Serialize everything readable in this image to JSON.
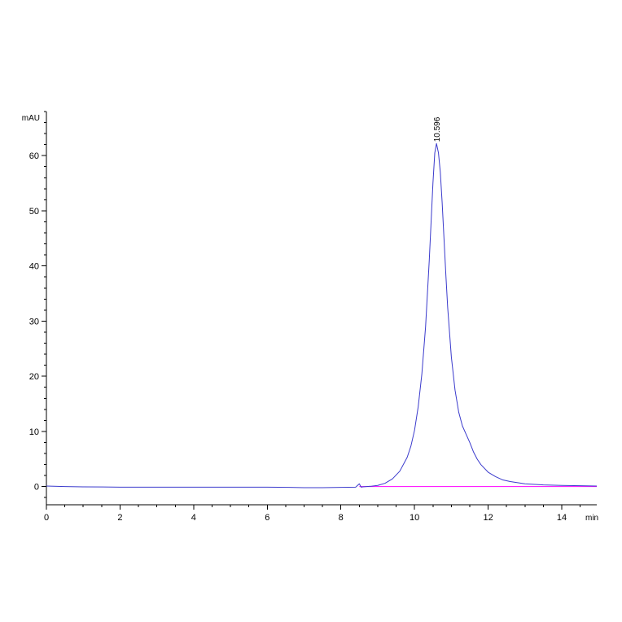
{
  "chart_data": {
    "type": "line",
    "title": "",
    "xlabel": "",
    "ylabel": "",
    "x_unit": "min",
    "y_unit": "mAU",
    "xlim": [
      0,
      14.95
    ],
    "ylim": [
      -3.3,
      68
    ],
    "x_ticks": [
      0,
      2,
      4,
      6,
      8,
      10,
      12,
      14
    ],
    "y_ticks": [
      0,
      10,
      20,
      30,
      40,
      50,
      60
    ],
    "x_minor_step": 0.5,
    "y_minor_step": 2,
    "grid": false,
    "colors": {
      "signal": "#3a3acc",
      "baseline": "#ff00ff",
      "axis": "#000000"
    },
    "series": [
      {
        "x": [
          0,
          0.5,
          1,
          2,
          3,
          4,
          5,
          6,
          6.6,
          7,
          7.5,
          8,
          8.4,
          8.5,
          8.55,
          8.6,
          8.8,
          9.0,
          9.2,
          9.4,
          9.6,
          9.8,
          9.9,
          10.0,
          10.1,
          10.2,
          10.3,
          10.4,
          10.45,
          10.5,
          10.55,
          10.596,
          10.65,
          10.7,
          10.75,
          10.8,
          10.85,
          10.9,
          11.0,
          11.1,
          11.2,
          11.3,
          11.4,
          11.5,
          11.6,
          11.7,
          11.8,
          12.0,
          12.2,
          12.4,
          12.6,
          12.8,
          13.0,
          13.5,
          14.0,
          14.5,
          14.95
        ],
        "y": [
          0.1,
          0.0,
          -0.05,
          -0.1,
          -0.1,
          -0.1,
          -0.1,
          -0.1,
          -0.15,
          -0.2,
          -0.2,
          -0.15,
          -0.1,
          0.5,
          -0.1,
          -0.05,
          0.05,
          0.2,
          0.6,
          1.4,
          2.8,
          5.3,
          7.3,
          10.2,
          14.5,
          20.5,
          29.0,
          41.0,
          48.0,
          55.0,
          60.5,
          62.2,
          60.5,
          57.0,
          51.5,
          45.0,
          38.5,
          32.5,
          23.5,
          17.5,
          13.5,
          11.0,
          9.5,
          8.0,
          6.3,
          5.0,
          4.0,
          2.6,
          1.8,
          1.2,
          0.9,
          0.7,
          0.5,
          0.3,
          0.2,
          0.15,
          0.1
        ]
      }
    ],
    "baseline": {
      "x": [
        8.5,
        14.95
      ],
      "y": [
        0.0,
        0.0
      ]
    },
    "annotations": [
      {
        "x": 10.596,
        "y": 62.2,
        "text": "10.596"
      }
    ]
  }
}
